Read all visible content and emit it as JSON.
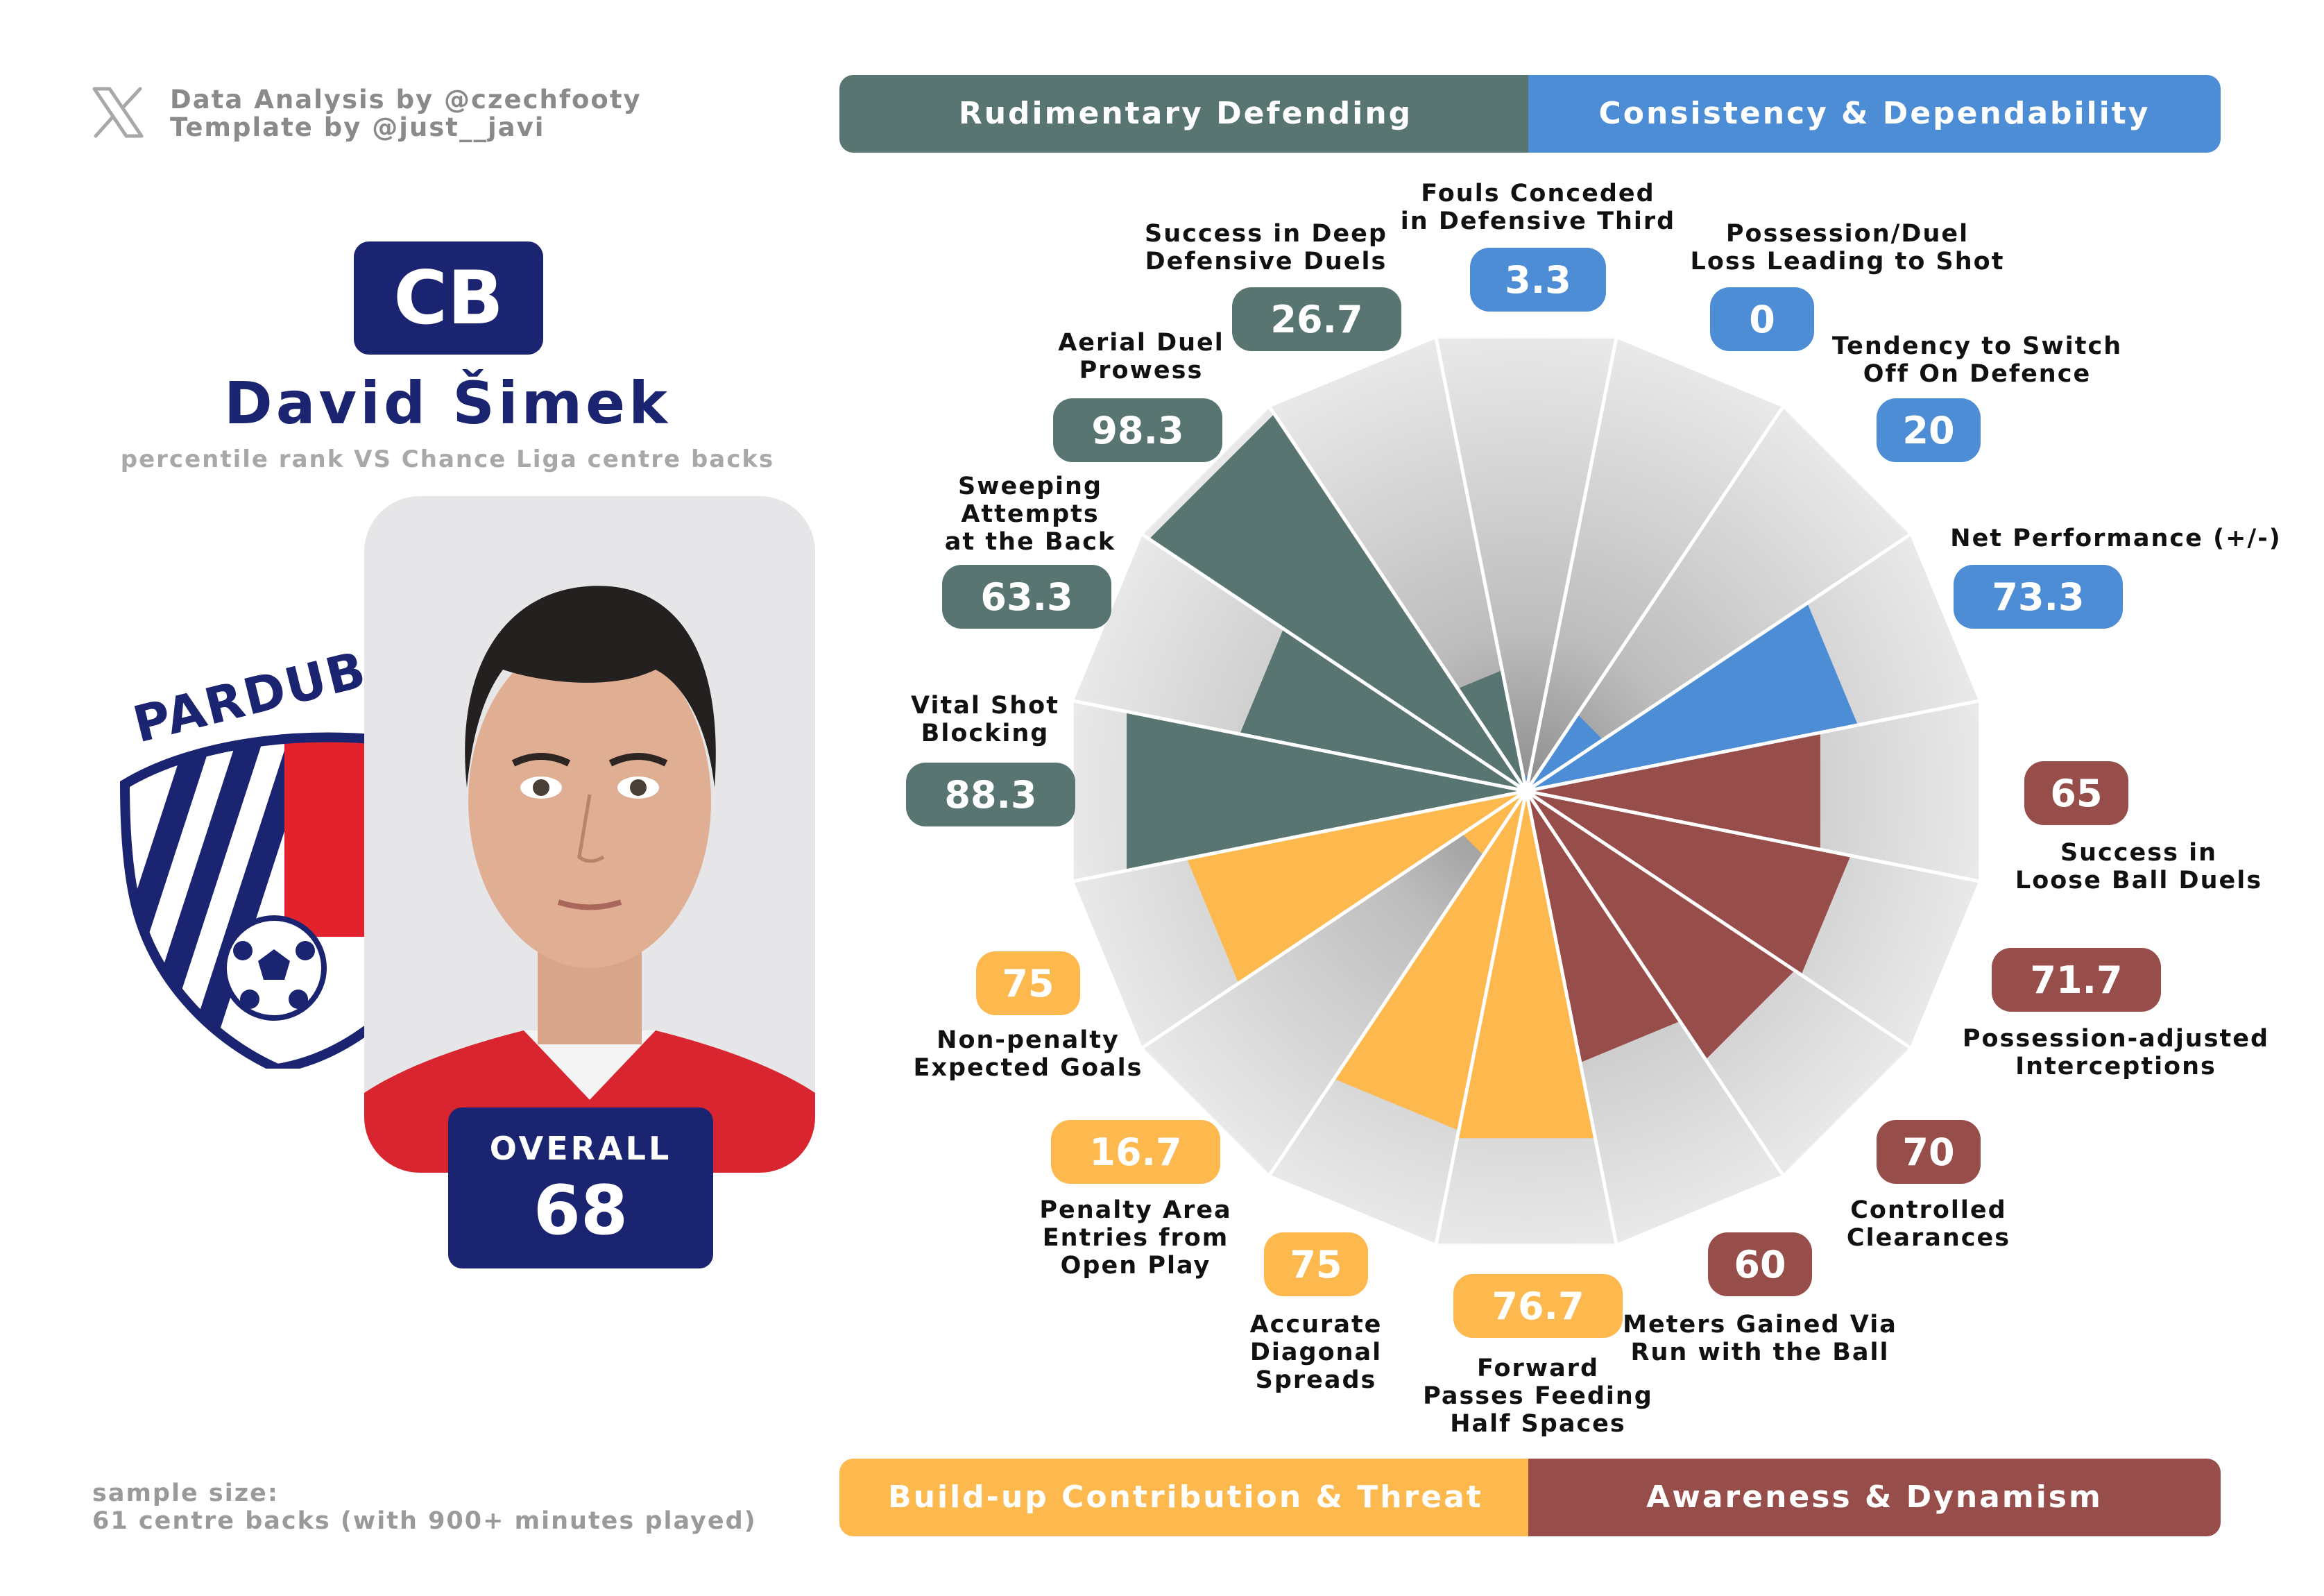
{
  "credits": {
    "line1": "Data Analysis by @czechfooty",
    "line2": "Template by @just__javi"
  },
  "icons": {
    "social": "x-logo-icon",
    "club": "pardubice-crest-icon",
    "player": "player-portrait"
  },
  "player": {
    "position": "CB",
    "name": "David Šimek",
    "subtitle": "percentile rank VS Chance Liga centre backs",
    "overall_label": "OVERALL",
    "overall_value": "68",
    "club_wordmark": "PARDUBICE"
  },
  "sample": {
    "line1": "sample size:",
    "line2": "61 centre backs (with 900+ minutes played)"
  },
  "categories": {
    "rudimentary": {
      "label": "Rudimentary Defending",
      "color": "#587571"
    },
    "consistency": {
      "label": "Consistency & Dependability",
      "color": "#4d8dd6"
    },
    "buildup": {
      "label": "Build-up Contribution & Threat",
      "color": "#fdb84e"
    },
    "awareness": {
      "label": "Awareness & Dynamism",
      "color": "#974d4a"
    }
  },
  "chart_data": {
    "type": "radar",
    "scale": [
      0,
      100
    ],
    "metrics": [
      {
        "label": [
          "Fouls Conceded",
          "in Defensive Third"
        ],
        "value": 3.3,
        "display": "3.3",
        "category": "consistency"
      },
      {
        "label": [
          "Possession/Duel",
          "Loss Leading to Shot"
        ],
        "value": 0,
        "display": "0",
        "category": "consistency"
      },
      {
        "label": [
          "Tendency to Switch",
          "Off On Defence"
        ],
        "value": 20,
        "display": "20",
        "category": "consistency"
      },
      {
        "label": [
          "Net Performance (+/-)"
        ],
        "value": 73.3,
        "display": "73.3",
        "category": "consistency"
      },
      {
        "label": [
          "Success in",
          "Loose Ball Duels"
        ],
        "value": 65,
        "display": "65",
        "category": "awareness"
      },
      {
        "label": [
          "Possession-adjusted",
          "Interceptions"
        ],
        "value": 71.7,
        "display": "71.7",
        "category": "awareness"
      },
      {
        "label": [
          "Controlled",
          "Clearances"
        ],
        "value": 70,
        "display": "70",
        "category": "awareness"
      },
      {
        "label": [
          "Meters Gained Via",
          "Run with the Ball"
        ],
        "value": 60,
        "display": "60",
        "category": "awareness"
      },
      {
        "label": [
          "Forward",
          "Passes Feeding",
          "Half Spaces"
        ],
        "value": 76.7,
        "display": "76.7",
        "category": "buildup"
      },
      {
        "label": [
          "Accurate",
          "Diagonal",
          "Spreads"
        ],
        "value": 75,
        "display": "75",
        "category": "buildup"
      },
      {
        "label": [
          "Penalty Area",
          "Entries from",
          "Open Play"
        ],
        "value": 16.7,
        "display": "16.7",
        "category": "buildup"
      },
      {
        "label": [
          "Non-penalty",
          "Expected Goals"
        ],
        "value": 75,
        "display": "75",
        "category": "buildup"
      },
      {
        "label": [
          "Vital Shot",
          "Blocking"
        ],
        "value": 88.3,
        "display": "88.3",
        "category": "rudimentary"
      },
      {
        "label": [
          "Sweeping",
          "Attempts",
          "at the Back"
        ],
        "value": 63.3,
        "display": "63.3",
        "category": "rudimentary"
      },
      {
        "label": [
          "Aerial Duel",
          "Prowess"
        ],
        "value": 98.3,
        "display": "98.3",
        "category": "rudimentary"
      },
      {
        "label": [
          "Success in Deep",
          "Defensive Duels"
        ],
        "value": 26.7,
        "display": "26.7",
        "category": "rudimentary"
      }
    ]
  }
}
